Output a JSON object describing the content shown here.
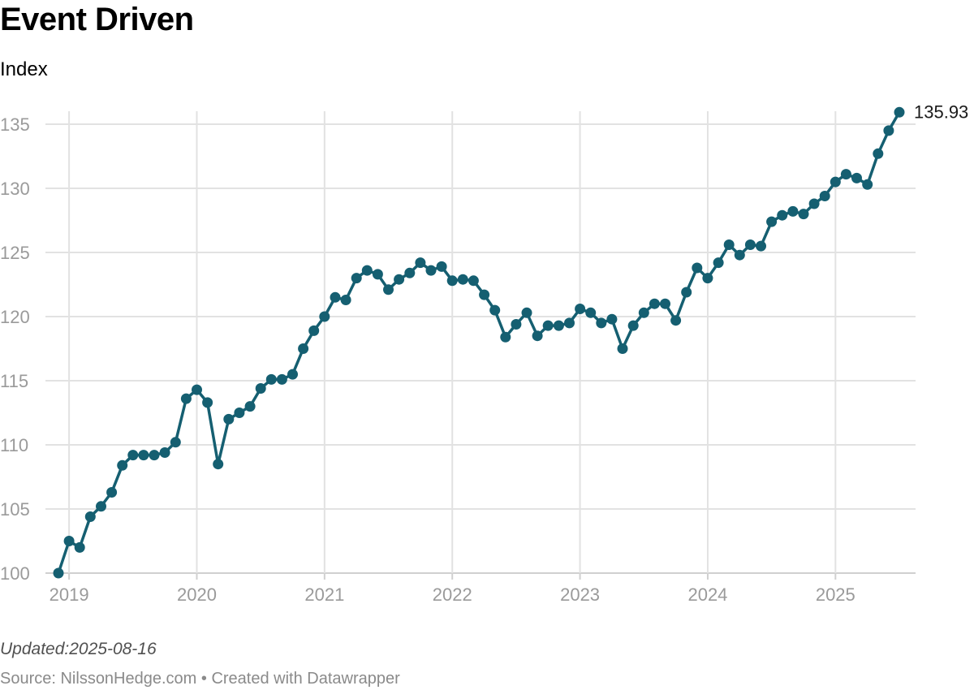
{
  "title": "Event Driven",
  "subtitle": "Index",
  "footer": {
    "updated": "Updated:2025-08-16",
    "source": "Source: NilssonHedge.com • Created with Datawrapper"
  },
  "colors": {
    "series": "#155f71",
    "grid": "#e2e2e2",
    "tick": "#9a9a9a"
  },
  "chart_data": {
    "type": "line",
    "title": "Event Driven",
    "ylabel": "Index",
    "xlabel": "",
    "ylim": [
      100,
      136
    ],
    "yticks": [
      100,
      105,
      110,
      115,
      120,
      125,
      130,
      135
    ],
    "xticks": [
      "2019",
      "2020",
      "2021",
      "2022",
      "2023",
      "2024",
      "2025"
    ],
    "grid": true,
    "legend": "none",
    "end_label": "135.93",
    "series": [
      {
        "x": [
          "2018-12",
          "2019-01",
          "2019-02",
          "2019-03",
          "2019-04",
          "2019-05",
          "2019-06",
          "2019-07",
          "2019-08",
          "2019-09",
          "2019-10",
          "2019-11",
          "2019-12",
          "2020-01",
          "2020-02",
          "2020-03",
          "2020-04",
          "2020-05",
          "2020-06",
          "2020-07",
          "2020-08",
          "2020-09",
          "2020-10",
          "2020-11",
          "2020-12",
          "2021-01",
          "2021-02",
          "2021-03",
          "2021-04",
          "2021-05",
          "2021-06",
          "2021-07",
          "2021-08",
          "2021-09",
          "2021-10",
          "2021-11",
          "2021-12",
          "2022-01",
          "2022-02",
          "2022-03",
          "2022-04",
          "2022-05",
          "2022-06",
          "2022-07",
          "2022-08",
          "2022-09",
          "2022-10",
          "2022-11",
          "2022-12",
          "2023-01",
          "2023-02",
          "2023-03",
          "2023-04",
          "2023-05",
          "2023-06",
          "2023-07",
          "2023-08",
          "2023-09",
          "2023-10",
          "2023-11",
          "2023-12",
          "2024-01",
          "2024-02",
          "2024-03",
          "2024-04",
          "2024-05",
          "2024-06",
          "2024-07",
          "2024-08",
          "2024-09",
          "2024-10",
          "2024-11",
          "2024-12",
          "2025-01",
          "2025-02",
          "2025-03",
          "2025-04",
          "2025-05",
          "2025-06",
          "2025-07"
        ],
        "values": [
          100.0,
          102.5,
          102.0,
          104.4,
          105.2,
          106.3,
          108.4,
          109.2,
          109.2,
          109.2,
          109.4,
          110.2,
          113.6,
          114.3,
          113.3,
          108.5,
          112.0,
          112.5,
          113.0,
          114.4,
          115.1,
          115.1,
          115.5,
          117.5,
          118.9,
          120.0,
          121.5,
          121.3,
          123.0,
          123.6,
          123.3,
          122.1,
          122.9,
          123.4,
          124.2,
          123.6,
          123.9,
          122.8,
          122.9,
          122.8,
          121.7,
          120.5,
          118.4,
          119.4,
          120.3,
          118.5,
          119.3,
          119.3,
          119.5,
          120.6,
          120.3,
          119.5,
          119.8,
          117.5,
          119.3,
          120.3,
          121.0,
          121.0,
          119.7,
          121.9,
          123.8,
          123.0,
          124.2,
          125.6,
          124.8,
          125.6,
          125.5,
          127.4,
          127.9,
          128.2,
          128.0,
          128.8,
          129.4,
          130.5,
          131.1,
          130.8,
          130.3,
          132.7,
          134.5,
          135.93
        ]
      }
    ]
  }
}
